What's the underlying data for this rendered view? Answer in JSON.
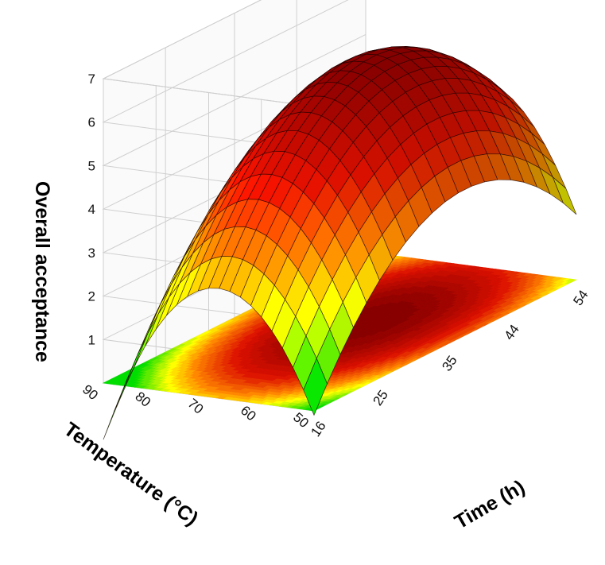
{
  "chart_data": {
    "type": "surface3d",
    "title": "",
    "xlabel": "Time (h)",
    "ylabel": "Temperature (°C)",
    "zlabel": "Overall acceptance",
    "x_ticks": [
      16,
      25,
      35,
      44,
      54
    ],
    "y_ticks": [
      50,
      60,
      70,
      80,
      90
    ],
    "z_ticks": [
      1,
      2,
      3,
      4,
      5,
      6,
      7
    ],
    "xlim": [
      16,
      54
    ],
    "ylim": [
      50,
      90
    ],
    "zlim": [
      0,
      7
    ],
    "grid": true,
    "legend": "none",
    "surface_samples": [
      {
        "time": 35,
        "temperature": 70,
        "acceptance": 6.0
      },
      {
        "time": 16,
        "temperature": 50,
        "acceptance": 1.4
      },
      {
        "time": 54,
        "temperature": 50,
        "acceptance": 2.6
      },
      {
        "time": 16,
        "temperature": 90,
        "acceptance": 0.4
      },
      {
        "time": 54,
        "temperature": 90,
        "acceptance": 2.7
      }
    ],
    "colors": {
      "low": "#00dd00",
      "mid_low": "#ffff00",
      "mid": "#ff8800",
      "high": "#dd1100",
      "peak": "#880000",
      "grid": "#cfcfcf",
      "mesh": "#1a0000"
    }
  }
}
